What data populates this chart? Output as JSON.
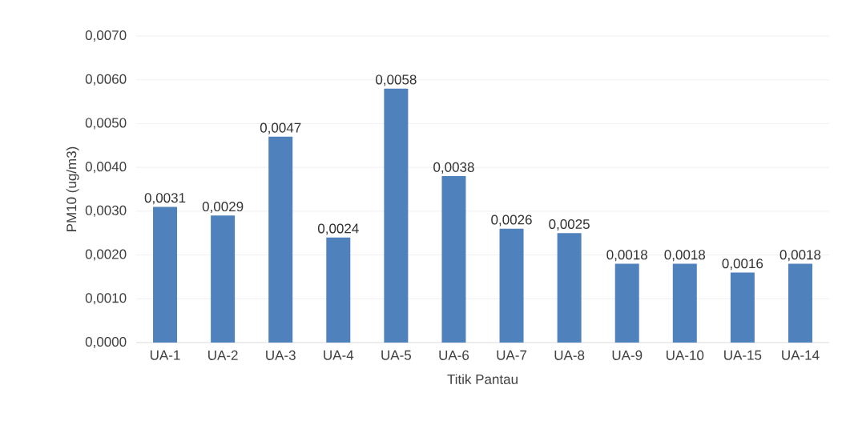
{
  "chart_data": {
    "type": "bar",
    "xlabel": "Titik Pantau",
    "ylabel": "PM10 (ug/m3)",
    "categories": [
      "UA-1",
      "UA-2",
      "UA-3",
      "UA-4",
      "UA-5",
      "UA-6",
      "UA-7",
      "UA-8",
      "UA-9",
      "UA-10",
      "UA-15",
      "UA-14"
    ],
    "values": [
      0.0031,
      0.0029,
      0.0047,
      0.0024,
      0.0058,
      0.0038,
      0.0026,
      0.0025,
      0.0018,
      0.0018,
      0.0016,
      0.0018
    ],
    "value_labels": [
      "0,0031",
      "0,0029",
      "0,0047",
      "0,0024",
      "0,0058",
      "0,0038",
      "0,0026",
      "0,0025",
      "0,0018",
      "0,0018",
      "0,0016",
      "0,0018"
    ],
    "color": "#4f81bd",
    "ylim": [
      0,
      0.007
    ],
    "yticks": [
      {
        "value": 0,
        "label": "0,0000"
      },
      {
        "value": 0.001,
        "label": "0,0010"
      },
      {
        "value": 0.002,
        "label": "0,0020"
      },
      {
        "value": 0.003,
        "label": "0,0030"
      },
      {
        "value": 0.004,
        "label": "0,0040"
      },
      {
        "value": 0.005,
        "label": "0,0050"
      },
      {
        "value": 0.006,
        "label": "0,0060"
      },
      {
        "value": 0.007,
        "label": "0,0070"
      }
    ],
    "grid": "y"
  }
}
